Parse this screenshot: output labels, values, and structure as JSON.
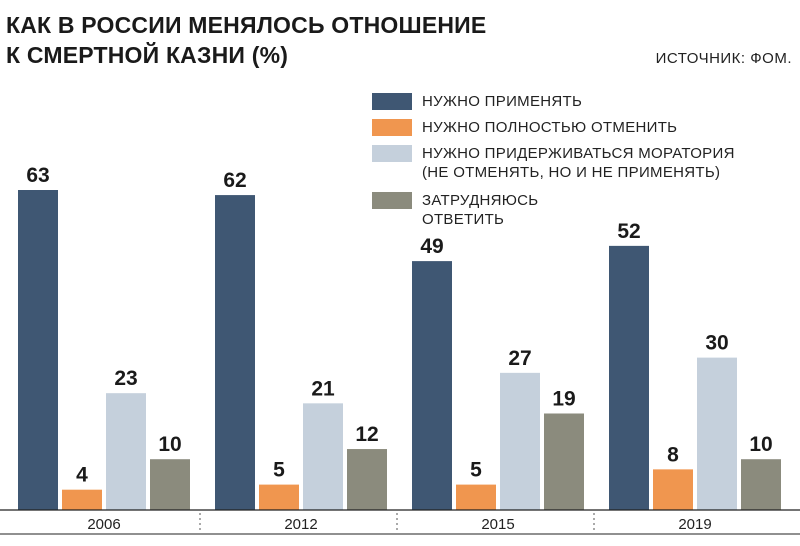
{
  "title_lines": [
    "КАК В РОССИИ МЕНЯЛОСЬ ОТНОШЕНИЕ",
    "К СМЕРТНОЙ КАЗНИ (%)"
  ],
  "source": "ИСТОЧНИК: ФОМ.",
  "colors": {
    "series_0": "#3f5773",
    "series_1": "#f0964f",
    "series_2": "#c5d0dc",
    "series_3": "#8b8b7d"
  },
  "chart_data": {
    "type": "bar",
    "categories": [
      "2006",
      "2012",
      "2015",
      "2019"
    ],
    "series": [
      {
        "name": "НУЖНО ПРИМЕНЯТЬ",
        "values": [
          63,
          62,
          49,
          52
        ]
      },
      {
        "name": "НУЖНО ПОЛНОСТЬЮ ОТМЕНИТЬ",
        "values": [
          4,
          5,
          5,
          8
        ]
      },
      {
        "name": "НУЖНО ПРИДЕРЖИВАТЬСЯ МОРАТОРИЯ\n(НЕ ОТМЕНЯТЬ, НО И НЕ ПРИМЕНЯТЬ)",
        "values": [
          23,
          21,
          27,
          30
        ]
      },
      {
        "name": "ЗАТРУДНЯЮСЬ\nОТВЕТИТЬ",
        "values": [
          10,
          12,
          19,
          10
        ]
      }
    ],
    "ylim": [
      0,
      63
    ],
    "grid": false,
    "legend_position": "top-right",
    "data_labels": true
  }
}
